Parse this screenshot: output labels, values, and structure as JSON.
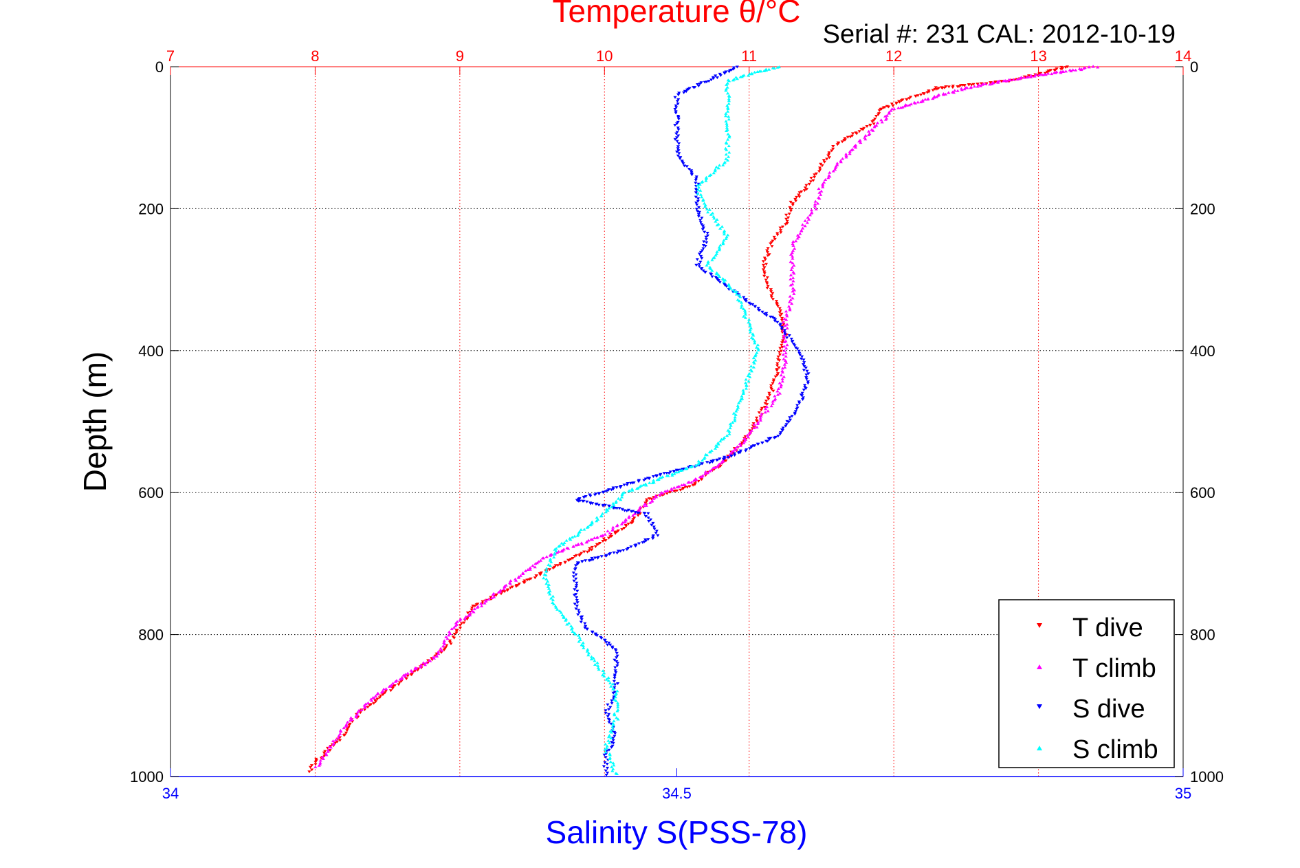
{
  "figure": {
    "title": "Temperature θ/°C",
    "subtitle": "Serial #: 231  CAL: 2012-10-19",
    "ylabel": "Depth (m)",
    "xlabel": "Salinity S(PSS-78)",
    "colors": {
      "temperature_axis": "#ff0000",
      "salinity_axis": "#0000ff",
      "t_dive": "#ff0000",
      "t_climb": "#ff00ff",
      "s_dive": "#0000ff",
      "s_climb": "#00ffff",
      "grid": "#000000"
    }
  },
  "chart_data": {
    "type": "scatter",
    "title": "Temperature θ/°C",
    "subtitle": "Serial #: 231  CAL: 2012-10-19",
    "ylabel": "Depth (m)",
    "xlabel": "Salinity S(PSS-78)",
    "ylim": [
      0,
      1000
    ],
    "y_reversed": true,
    "yticks": [
      0,
      200,
      400,
      600,
      800,
      1000
    ],
    "temperature_axis": {
      "position": "top",
      "lim": [
        7,
        14
      ],
      "ticks": [
        7,
        8,
        9,
        10,
        11,
        12,
        13,
        14
      ],
      "color": "#ff0000"
    },
    "salinity_axis": {
      "position": "bottom",
      "lim": [
        34,
        35
      ],
      "ticks": [
        34,
        34.5,
        35
      ],
      "color": "#0000ff"
    },
    "grid": true,
    "legend": {
      "placement": "bottom-right",
      "entries": [
        "T dive",
        "T climb",
        "S dive",
        "S climb"
      ]
    },
    "series": [
      {
        "name": "T dive",
        "variable": "temperature",
        "marker": "triangle-down",
        "color": "#ff0000",
        "points": [
          [
            13.2,
            0
          ],
          [
            12.8,
            20
          ],
          [
            12.3,
            30
          ],
          [
            11.9,
            60
          ],
          [
            11.85,
            80
          ],
          [
            11.6,
            110
          ],
          [
            11.5,
            140
          ],
          [
            11.4,
            170
          ],
          [
            11.3,
            190
          ],
          [
            11.25,
            220
          ],
          [
            11.15,
            250
          ],
          [
            11.1,
            280
          ],
          [
            11.15,
            320
          ],
          [
            11.2,
            340
          ],
          [
            11.25,
            380
          ],
          [
            11.2,
            420
          ],
          [
            11.15,
            460
          ],
          [
            11.05,
            500
          ],
          [
            10.95,
            530
          ],
          [
            10.8,
            560
          ],
          [
            10.6,
            590
          ],
          [
            10.3,
            610
          ],
          [
            10.2,
            640
          ],
          [
            9.9,
            680
          ],
          [
            9.6,
            710
          ],
          [
            9.3,
            740
          ],
          [
            9.1,
            760
          ],
          [
            9.0,
            790
          ],
          [
            8.9,
            820
          ],
          [
            8.7,
            850
          ],
          [
            8.5,
            880
          ],
          [
            8.3,
            910
          ],
          [
            8.2,
            940
          ],
          [
            8.0,
            980
          ],
          [
            7.95,
            995
          ]
        ]
      },
      {
        "name": "T climb",
        "variable": "temperature",
        "marker": "triangle-up",
        "color": "#ff00ff",
        "points": [
          [
            13.4,
            0
          ],
          [
            12.9,
            15
          ],
          [
            12.5,
            30
          ],
          [
            12.0,
            60
          ],
          [
            11.9,
            80
          ],
          [
            11.8,
            100
          ],
          [
            11.6,
            140
          ],
          [
            11.5,
            170
          ],
          [
            11.45,
            200
          ],
          [
            11.3,
            250
          ],
          [
            11.3,
            280
          ],
          [
            11.3,
            320
          ],
          [
            11.25,
            360
          ],
          [
            11.25,
            420
          ],
          [
            11.2,
            460
          ],
          [
            11.1,
            490
          ],
          [
            11.0,
            520
          ],
          [
            10.8,
            560
          ],
          [
            10.6,
            585
          ],
          [
            10.4,
            600
          ],
          [
            10.2,
            630
          ],
          [
            10.0,
            660
          ],
          [
            9.6,
            690
          ],
          [
            9.4,
            720
          ],
          [
            9.2,
            750
          ],
          [
            8.95,
            790
          ],
          [
            8.85,
            830
          ],
          [
            8.6,
            860
          ],
          [
            8.4,
            890
          ],
          [
            8.2,
            930
          ],
          [
            8.1,
            960
          ],
          [
            8.0,
            990
          ]
        ]
      },
      {
        "name": "S dive",
        "variable": "salinity",
        "marker": "triangle-down",
        "color": "#0000ff",
        "points": [
          [
            34.56,
            0
          ],
          [
            34.5,
            40
          ],
          [
            34.5,
            80
          ],
          [
            34.5,
            120
          ],
          [
            34.52,
            160
          ],
          [
            34.52,
            200
          ],
          [
            34.53,
            240
          ],
          [
            34.52,
            280
          ],
          [
            34.56,
            320
          ],
          [
            34.6,
            360
          ],
          [
            34.62,
            400
          ],
          [
            34.63,
            440
          ],
          [
            34.62,
            480
          ],
          [
            34.6,
            520
          ],
          [
            34.55,
            550
          ],
          [
            34.47,
            580
          ],
          [
            34.4,
            610
          ],
          [
            34.47,
            630
          ],
          [
            34.48,
            660
          ],
          [
            34.45,
            680
          ],
          [
            34.4,
            700
          ],
          [
            34.4,
            730
          ],
          [
            34.4,
            760
          ],
          [
            34.41,
            790
          ],
          [
            34.44,
            820
          ],
          [
            34.44,
            850
          ],
          [
            34.44,
            880
          ],
          [
            34.43,
            910
          ],
          [
            34.44,
            940
          ],
          [
            34.43,
            970
          ],
          [
            34.43,
            1000
          ]
        ]
      },
      {
        "name": "S climb",
        "variable": "salinity",
        "marker": "triangle-up",
        "color": "#00ffff",
        "points": [
          [
            34.6,
            0
          ],
          [
            34.55,
            20
          ],
          [
            34.55,
            60
          ],
          [
            34.55,
            100
          ],
          [
            34.55,
            130
          ],
          [
            34.52,
            170
          ],
          [
            34.53,
            200
          ],
          [
            34.55,
            240
          ],
          [
            34.53,
            280
          ],
          [
            34.56,
            320
          ],
          [
            34.57,
            360
          ],
          [
            34.58,
            400
          ],
          [
            34.57,
            440
          ],
          [
            34.56,
            480
          ],
          [
            34.55,
            520
          ],
          [
            34.52,
            560
          ],
          [
            34.45,
            600
          ],
          [
            34.42,
            640
          ],
          [
            34.38,
            680
          ],
          [
            34.37,
            720
          ],
          [
            34.38,
            760
          ],
          [
            34.4,
            800
          ],
          [
            34.42,
            840
          ],
          [
            34.44,
            880
          ],
          [
            34.44,
            920
          ],
          [
            34.43,
            960
          ],
          [
            34.44,
            1000
          ]
        ]
      }
    ]
  }
}
